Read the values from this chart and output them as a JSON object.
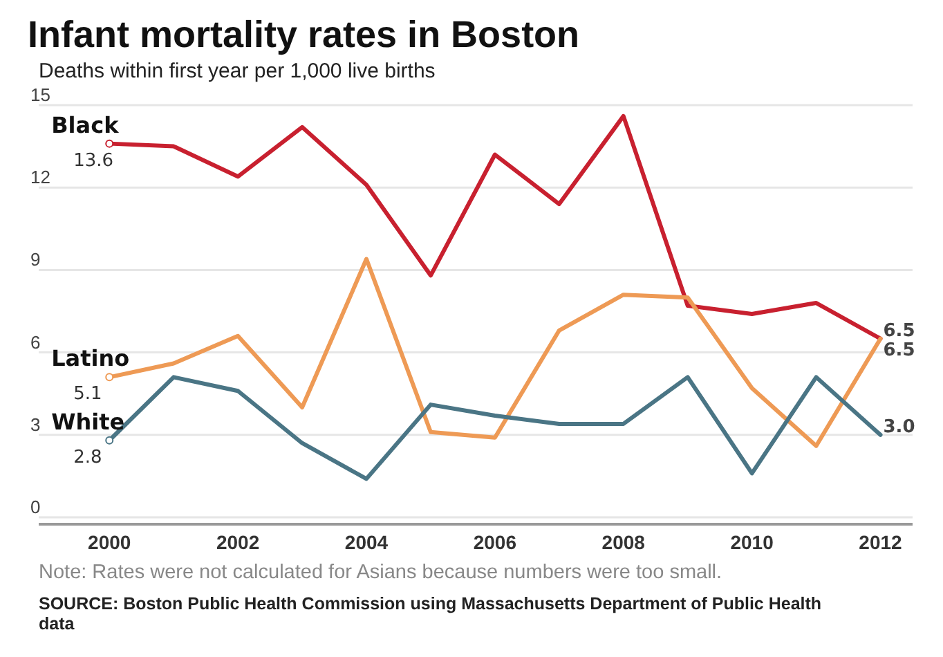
{
  "chart_data": {
    "type": "line",
    "title": "Infant mortality rates in Boston",
    "subtitle": "Deaths within first year per 1,000 live births",
    "x": [
      2000,
      2001,
      2002,
      2003,
      2004,
      2005,
      2006,
      2007,
      2008,
      2009,
      2010,
      2011,
      2012
    ],
    "xlim": [
      1998.9,
      2012.5
    ],
    "xticks": [
      2000,
      2002,
      2004,
      2006,
      2008,
      2010,
      2012
    ],
    "ylim": [
      0,
      15
    ],
    "yticks": [
      0,
      3,
      6,
      9,
      12,
      15
    ],
    "grid": "y",
    "line_style": "solid",
    "series": [
      {
        "name": "Black",
        "color": "#c8202f",
        "values": [
          13.6,
          13.5,
          12.4,
          14.2,
          12.1,
          8.8,
          13.2,
          11.4,
          14.6,
          7.7,
          7.4,
          7.8,
          6.5
        ],
        "value_labels": [
          "13.6",
          null,
          null,
          null,
          null,
          null,
          null,
          null,
          null,
          null,
          null,
          null,
          "6.5"
        ]
      },
      {
        "name": "Latino",
        "color": "#ee9a55",
        "values": [
          5.1,
          5.6,
          6.6,
          4.0,
          9.4,
          3.1,
          2.9,
          6.8,
          8.1,
          8.0,
          4.7,
          2.6,
          6.5
        ],
        "value_labels": [
          "5.1",
          null,
          null,
          null,
          null,
          null,
          null,
          null,
          null,
          null,
          null,
          null,
          "6.5"
        ]
      },
      {
        "name": "White",
        "color": "#4a7585",
        "values": [
          2.8,
          5.1,
          4.6,
          2.7,
          1.4,
          4.1,
          3.7,
          3.4,
          3.4,
          5.1,
          1.6,
          5.1,
          3.0
        ],
        "value_labels": [
          "2.8",
          null,
          null,
          null,
          null,
          null,
          null,
          null,
          null,
          null,
          null,
          null,
          "3.0"
        ]
      }
    ],
    "annotations": [
      "Note: Rates were not calculated for Asians because numbers were too small.",
      "SOURCE: Boston Public Health Commission using Massachusetts Department of Public Health data"
    ]
  }
}
